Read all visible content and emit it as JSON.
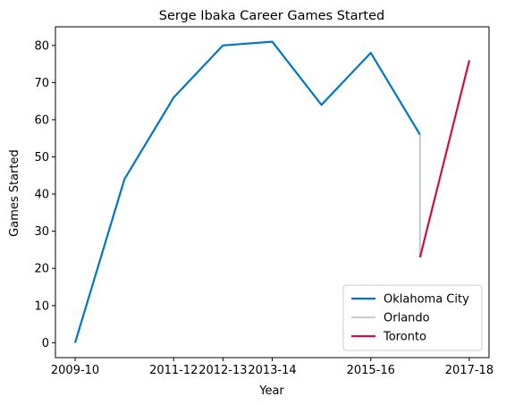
{
  "chart_data": {
    "type": "line",
    "title": "Serge Ibaka Career Games Started",
    "xlabel": "Year",
    "ylabel": "Games Started",
    "x_tick_labels": [
      "2009-10",
      "2011-12",
      "2012-13",
      "2013-14",
      "2015-16",
      "2017-18"
    ],
    "ylim": [
      -4,
      85
    ],
    "y_ticks": [
      0,
      10,
      20,
      30,
      40,
      50,
      60,
      70,
      80
    ],
    "grid": false,
    "legend_position": "lower right",
    "series": [
      {
        "name": "Oklahoma City",
        "color": "#0077c0",
        "points": [
          {
            "x": "2009-10",
            "y": 0
          },
          {
            "x": "2010-11",
            "y": 44
          },
          {
            "x": "2011-12",
            "y": 66
          },
          {
            "x": "2012-13",
            "y": 80
          },
          {
            "x": "2013-14",
            "y": 81
          },
          {
            "x": "2014-15",
            "y": 64
          },
          {
            "x": "2015-16",
            "y": 78
          },
          {
            "x": "2016-17",
            "y": 56
          }
        ]
      },
      {
        "name": "Orlando",
        "color": "#c4ced4",
        "points": [
          {
            "x": "2016-17",
            "y": 56
          },
          {
            "x": "2016-17",
            "y": 23
          }
        ]
      },
      {
        "name": "Toronto",
        "color": "#ce1141",
        "points": [
          {
            "x": "2016-17",
            "y": 23
          },
          {
            "x": "2017-18",
            "y": 76
          }
        ]
      }
    ]
  }
}
